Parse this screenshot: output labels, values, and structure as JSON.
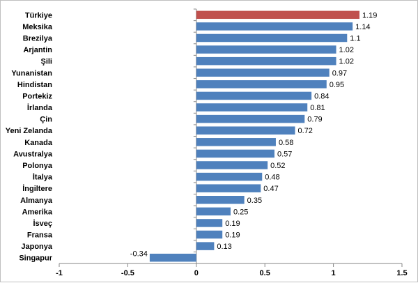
{
  "chart_data": {
    "type": "bar",
    "orientation": "horizontal",
    "categories": [
      "Türkiye",
      "Meksika",
      "Brezilya",
      "Arjantin",
      "Şili",
      "Yunanistan",
      "Hindistan",
      "Portekiz",
      "İrlanda",
      "Çin",
      "Yeni Zelanda",
      "Kanada",
      "Avustralya",
      "Polonya",
      "İtalya",
      "İngiltere",
      "Almanya",
      "Amerika",
      "İsveç",
      "Fransa",
      "Japonya",
      "Singapur"
    ],
    "values": [
      1.19,
      1.14,
      1.1,
      1.02,
      1.02,
      0.97,
      0.95,
      0.84,
      0.81,
      0.79,
      0.72,
      0.58,
      0.57,
      0.52,
      0.48,
      0.47,
      0.35,
      0.25,
      0.19,
      0.19,
      0.13,
      -0.34
    ],
    "value_labels": [
      "1.19",
      "1.14",
      "1.1",
      "1.02",
      "1.02",
      "0.97",
      "0.95",
      "0.84",
      "0.81",
      "0.79",
      "0.72",
      "0.58",
      "0.57",
      "0.52",
      "0.48",
      "0.47",
      "0.35",
      "0.25",
      "0.19",
      "0.19",
      "0.13",
      "-0.34"
    ],
    "xlim": [
      -1,
      1.5
    ],
    "xticks": [
      -1,
      -0.5,
      0,
      0.5,
      1,
      1.5
    ],
    "xtick_labels": [
      "-1",
      "-0.5",
      "0",
      "0.5",
      "1",
      "1.5"
    ],
    "highlight_index": 0,
    "colors": {
      "bar": "#4f81bd",
      "highlight": "#c0504d",
      "axis": "#868686"
    },
    "title": "",
    "xlabel": "",
    "ylabel": ""
  }
}
